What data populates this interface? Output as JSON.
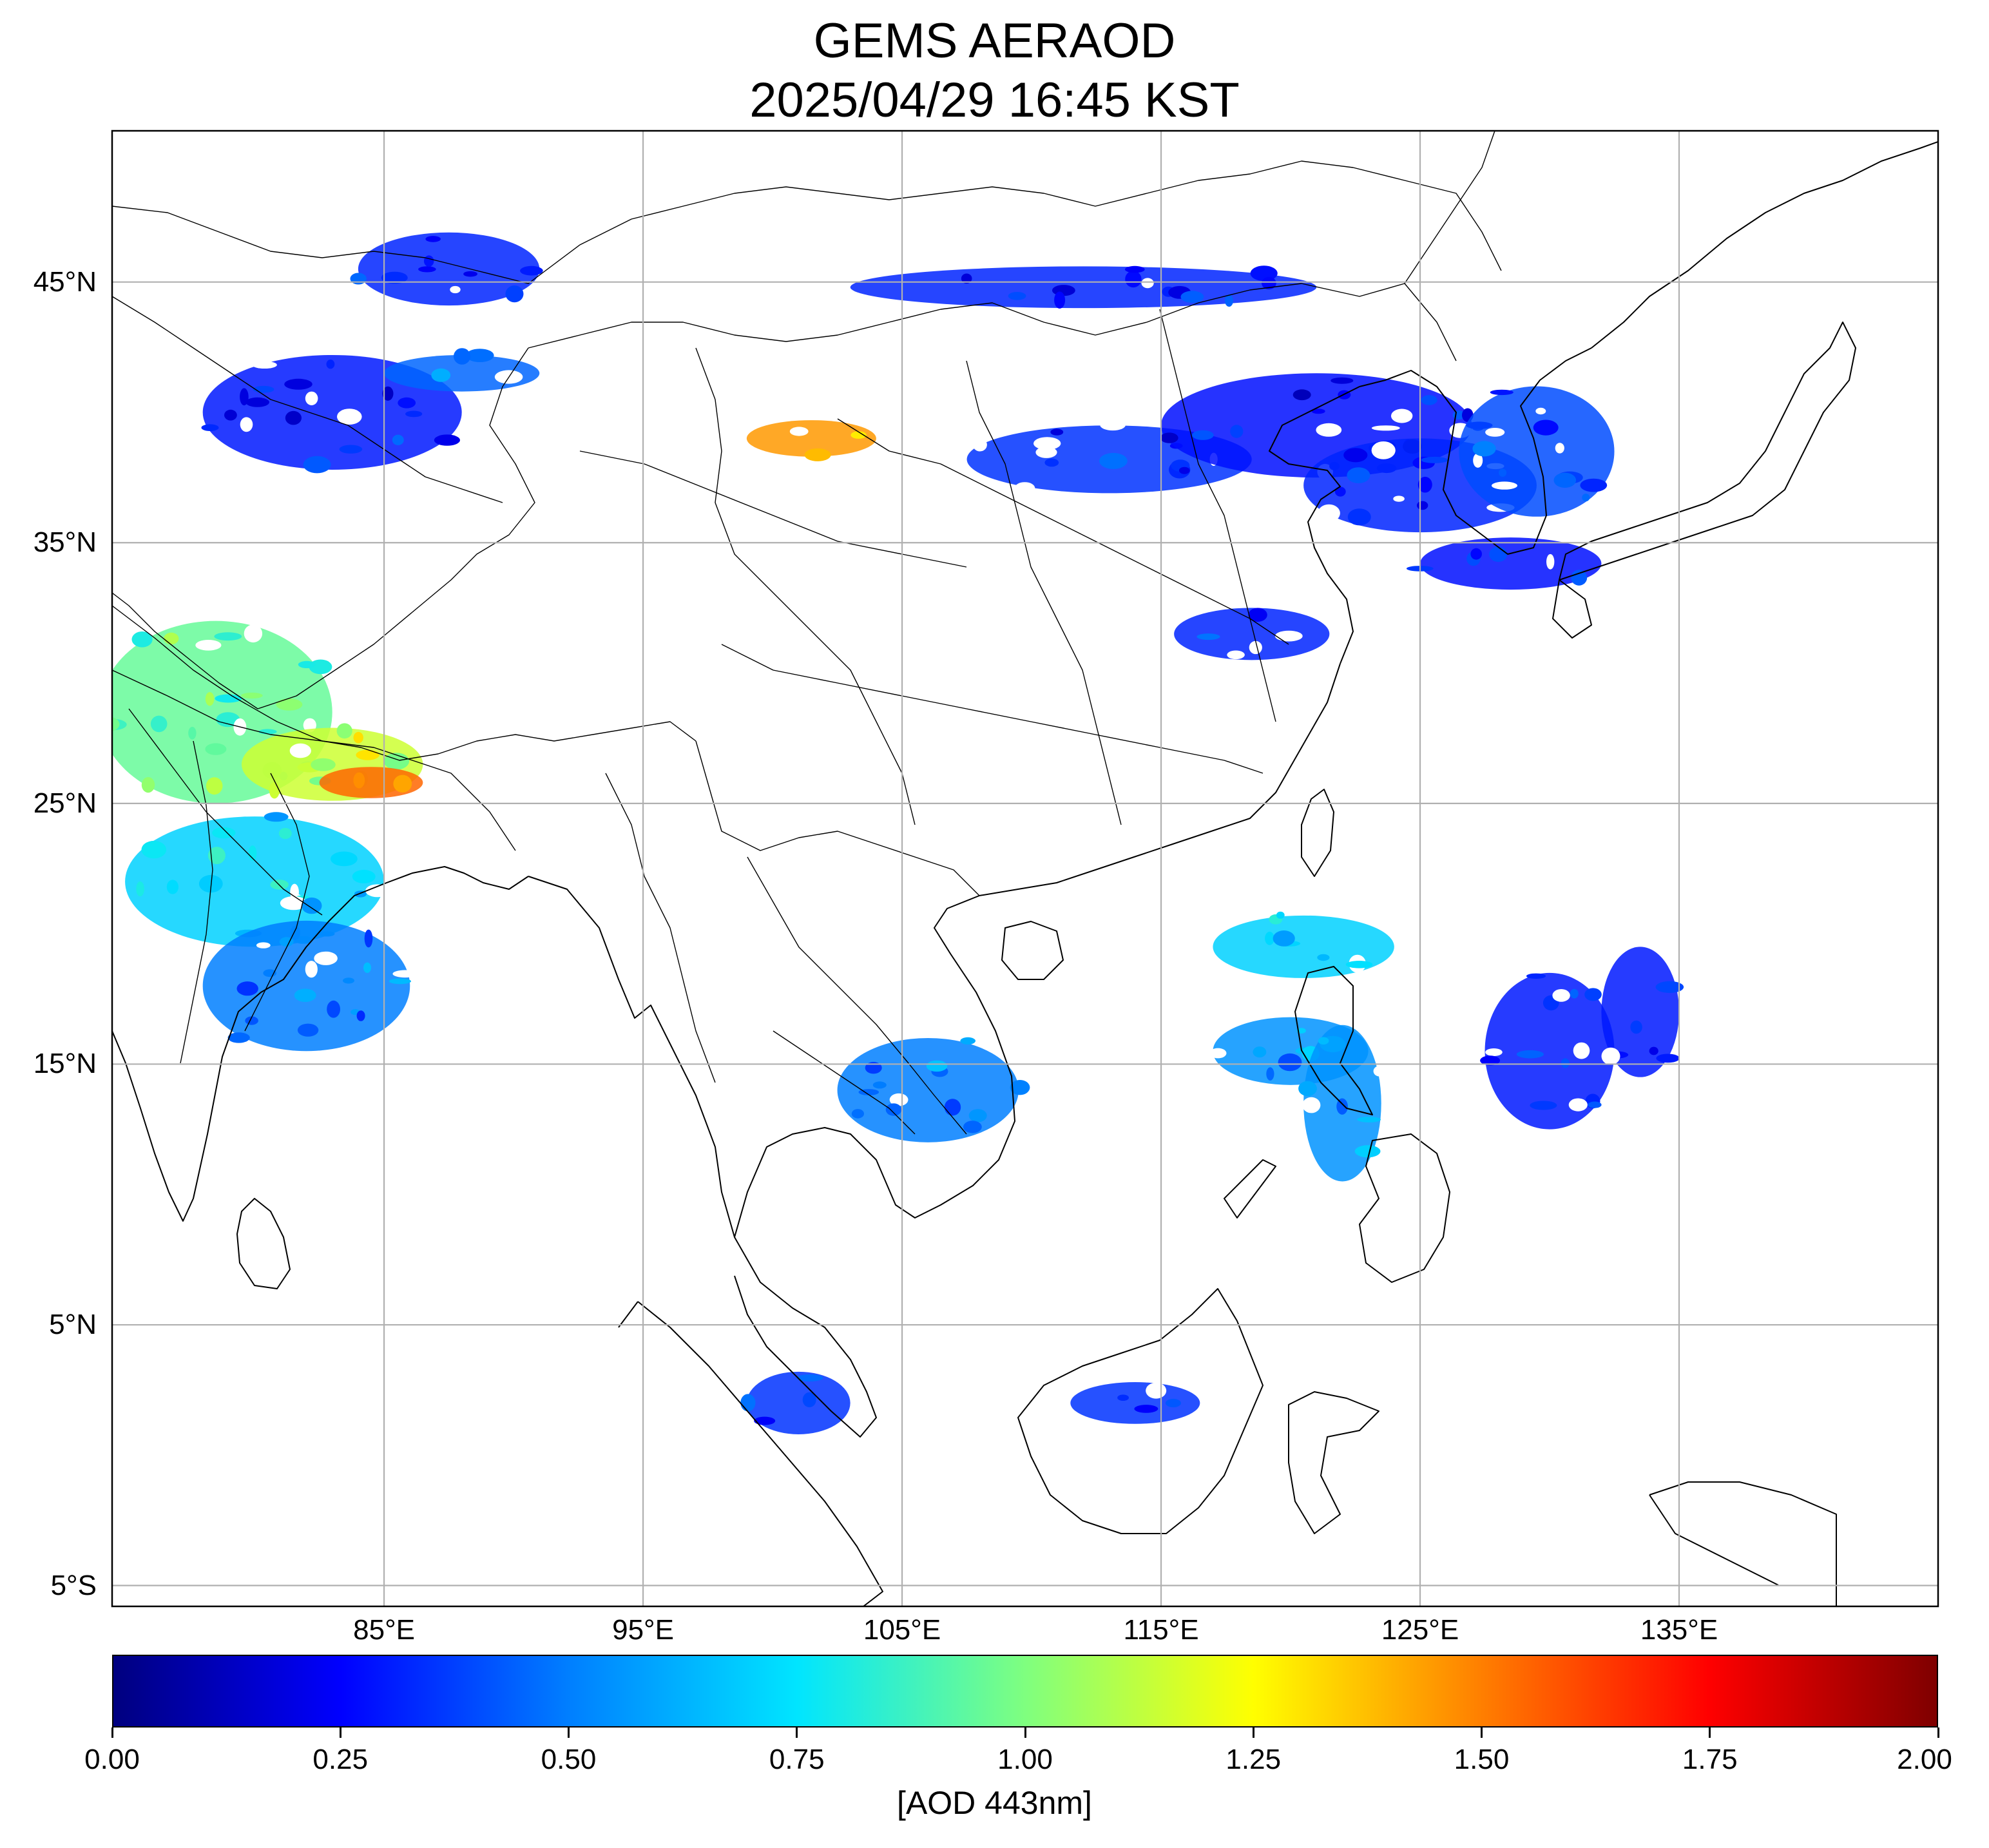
{
  "title": {
    "line1": "GEMS AERAOD",
    "line2": "2025/04/29 16:45 KST"
  },
  "map": {
    "projection": "plate-carree",
    "lon_range": [
      74.5,
      145
    ],
    "lat_range": [
      -5.8,
      50.8
    ],
    "gridlines": true,
    "lat_ticks": [
      {
        "value": 45,
        "label": "45°N"
      },
      {
        "value": 35,
        "label": "35°N"
      },
      {
        "value": 25,
        "label": "25°N"
      },
      {
        "value": 15,
        "label": "15°N"
      },
      {
        "value": 5,
        "label": "5°N"
      },
      {
        "value": -5,
        "label": "5°S"
      }
    ],
    "lon_ticks": [
      {
        "value": 85,
        "label": "85°E"
      },
      {
        "value": 95,
        "label": "95°E"
      },
      {
        "value": 105,
        "label": "105°E"
      },
      {
        "value": 115,
        "label": "115°E"
      },
      {
        "value": 125,
        "label": "125°E"
      },
      {
        "value": 135,
        "label": "135°E"
      }
    ],
    "aod_regions": [
      {
        "lon": 83,
        "lat": 40,
        "rlon": 5,
        "rlat": 2.2,
        "aod": 0.3
      },
      {
        "lon": 87.5,
        "lat": 45.5,
        "rlon": 3.5,
        "rlat": 1.4,
        "aod": 0.32
      },
      {
        "lon": 88,
        "lat": 41.5,
        "rlon": 3,
        "rlat": 0.7,
        "aod": 0.45
      },
      {
        "lon": 101.5,
        "lat": 39,
        "rlon": 2.5,
        "rlat": 0.7,
        "aod": 1.45
      },
      {
        "lon": 112,
        "lat": 44.8,
        "rlon": 9,
        "rlat": 0.8,
        "aod": 0.32
      },
      {
        "lon": 113,
        "lat": 38.2,
        "rlon": 5.5,
        "rlat": 1.3,
        "aod": 0.35
      },
      {
        "lon": 121,
        "lat": 39.5,
        "rlon": 6,
        "rlat": 2,
        "aod": 0.28
      },
      {
        "lon": 125,
        "lat": 37.2,
        "rlon": 4.5,
        "rlat": 1.8,
        "aod": 0.32
      },
      {
        "lon": 129.5,
        "lat": 38.5,
        "rlon": 3,
        "rlat": 2.5,
        "aod": 0.4
      },
      {
        "lon": 128.5,
        "lat": 34.2,
        "rlon": 3.5,
        "rlat": 1,
        "aod": 0.28
      },
      {
        "lon": 118.5,
        "lat": 31.5,
        "rlon": 3,
        "rlat": 1,
        "aod": 0.32
      },
      {
        "lon": 78.5,
        "lat": 28.5,
        "rlon": 4.5,
        "rlat": 3.5,
        "aod": 0.95
      },
      {
        "lon": 83,
        "lat": 26.5,
        "rlon": 3.5,
        "rlat": 1.4,
        "aod": 1.15
      },
      {
        "lon": 84.5,
        "lat": 25.8,
        "rlon": 2,
        "rlat": 0.6,
        "aod": 1.55
      },
      {
        "lon": 80,
        "lat": 22,
        "rlon": 5,
        "rlat": 2.5,
        "aod": 0.7
      },
      {
        "lon": 82,
        "lat": 18,
        "rlon": 4,
        "rlat": 2.5,
        "aod": 0.5
      },
      {
        "lon": 106,
        "lat": 14,
        "rlon": 3.5,
        "rlat": 2,
        "aod": 0.5
      },
      {
        "lon": 120.5,
        "lat": 19.5,
        "rlon": 3.5,
        "rlat": 1.2,
        "aod": 0.7
      },
      {
        "lon": 120,
        "lat": 15.5,
        "rlon": 3,
        "rlat": 1.3,
        "aod": 0.55
      },
      {
        "lon": 122,
        "lat": 13.5,
        "rlon": 1.5,
        "rlat": 3,
        "aod": 0.55
      },
      {
        "lon": 130,
        "lat": 15.5,
        "rlon": 2.5,
        "rlat": 3,
        "aod": 0.3
      },
      {
        "lon": 133.5,
        "lat": 17,
        "rlon": 1.5,
        "rlat": 2.5,
        "aod": 0.3
      },
      {
        "lon": 114,
        "lat": 2,
        "rlon": 2.5,
        "rlat": 0.8,
        "aod": 0.35
      },
      {
        "lon": 101,
        "lat": 2,
        "rlon": 2,
        "rlat": 1.2,
        "aod": 0.35
      }
    ]
  },
  "colorbar": {
    "min": 0,
    "max": 2,
    "ticks": [
      "0.00",
      "0.25",
      "0.50",
      "0.75",
      "1.00",
      "1.25",
      "1.50",
      "1.75",
      "2.00"
    ],
    "unit_label": "[AOD 443nm]",
    "colors": [
      "#00007f",
      "#0000ff",
      "#007fff",
      "#00e5ff",
      "#7fff7f",
      "#ffff00",
      "#ff7f00",
      "#ff0000",
      "#7f0000"
    ]
  }
}
